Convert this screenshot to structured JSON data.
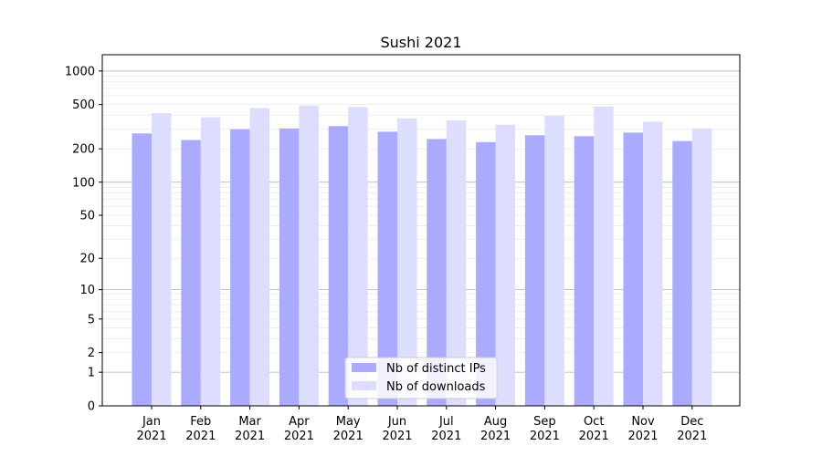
{
  "chart_data": {
    "type": "bar",
    "title": "Sushi 2021",
    "xlabel": "",
    "ylabel": "",
    "yscale": "log(1+y)",
    "ylim": [
      0,
      1400
    ],
    "categories": [
      {
        "month": "Jan",
        "year": "2021"
      },
      {
        "month": "Feb",
        "year": "2021"
      },
      {
        "month": "Mar",
        "year": "2021"
      },
      {
        "month": "Apr",
        "year": "2021"
      },
      {
        "month": "May",
        "year": "2021"
      },
      {
        "month": "Jun",
        "year": "2021"
      },
      {
        "month": "Jul",
        "year": "2021"
      },
      {
        "month": "Aug",
        "year": "2021"
      },
      {
        "month": "Sep",
        "year": "2021"
      },
      {
        "month": "Oct",
        "year": "2021"
      },
      {
        "month": "Nov",
        "year": "2021"
      },
      {
        "month": "Dec",
        "year": "2021"
      }
    ],
    "yticks": [
      {
        "value": 0,
        "label": "0"
      },
      {
        "value": 1,
        "label": "1"
      },
      {
        "value": 2,
        "label": "2"
      },
      {
        "value": 5,
        "label": "5"
      },
      {
        "value": 10,
        "label": "10"
      },
      {
        "value": 20,
        "label": "20"
      },
      {
        "value": 50,
        "label": "50"
      },
      {
        "value": 100,
        "label": "100"
      },
      {
        "value": 200,
        "label": "200"
      },
      {
        "value": 500,
        "label": "500"
      },
      {
        "value": 1000,
        "label": "1000"
      }
    ],
    "series": [
      {
        "name": "Nb of distinct IPs",
        "color": "#aaaaff",
        "values": [
          275,
          240,
          300,
          305,
          320,
          285,
          245,
          230,
          265,
          260,
          280,
          235
        ]
      },
      {
        "name": "Nb of downloads",
        "color": "#ddddff",
        "values": [
          420,
          385,
          465,
          490,
          475,
          375,
          360,
          330,
          395,
          480,
          350,
          305
        ]
      }
    ],
    "grid": true,
    "legend": "bottom-center"
  }
}
